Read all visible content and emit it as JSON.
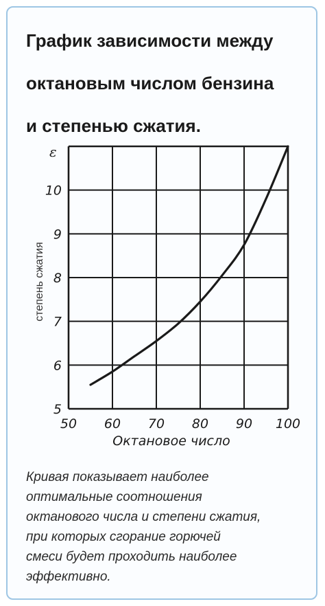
{
  "title": "График зависимости между\nоктановым числом бензина\nи степенью сжатия.",
  "caption": "Кривая показывает наиболее\nоптимальные соотношения\nоктанового числа и степени сжатия,\nпри которых сгорание горючей\nсмеси будет проходить наиболее\nэффективно.",
  "chart_data": {
    "type": "line",
    "xlabel": "Октановое число",
    "ylabel": "степень сжатия",
    "y_symbol": "ε",
    "xlim": [
      50,
      100
    ],
    "ylim": [
      5,
      11
    ],
    "x_ticks": [
      "50",
      "60",
      "70",
      "80",
      "90",
      "100"
    ],
    "y_ticks": [
      "5",
      "6",
      "7",
      "8",
      "9",
      "10"
    ],
    "grid": true,
    "series": [
      {
        "x": [
          55,
          60,
          65,
          70,
          75,
          80,
          85,
          90,
          95,
          100
        ],
        "y": [
          5.55,
          5.85,
          6.2,
          6.55,
          6.95,
          7.45,
          8.05,
          8.75,
          9.8,
          11.0
        ]
      }
    ]
  }
}
